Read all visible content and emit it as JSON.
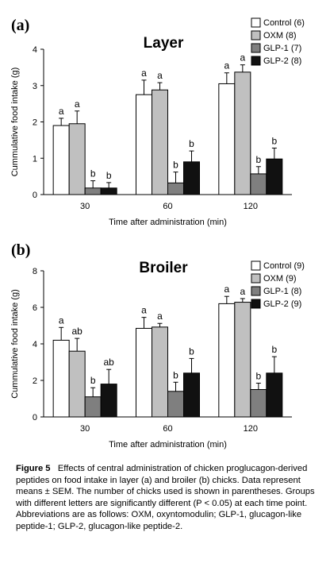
{
  "chart_data": [
    {
      "type": "bar",
      "panel_label": "(a)",
      "title": "Layer",
      "xlabel": "Time after administration (min)",
      "ylabel": "Cummulative food intake (g)",
      "categories": [
        "30",
        "60",
        "120"
      ],
      "ylim": [
        0,
        4
      ],
      "yticks": [
        "0",
        "1",
        "2",
        "3",
        "4"
      ],
      "legend_position": "top-right",
      "series": [
        {
          "name": "Control (6)",
          "color": "#ffffff",
          "values": [
            1.9,
            2.75,
            3.05
          ],
          "errors": [
            0.2,
            0.4,
            0.3
          ],
          "labels": [
            "a",
            "a",
            "a"
          ]
        },
        {
          "name": "OXM (8)",
          "color": "#c0c0c0",
          "values": [
            1.95,
            2.88,
            3.37
          ],
          "errors": [
            0.35,
            0.2,
            0.2
          ],
          "labels": [
            "a",
            "a",
            "a"
          ]
        },
        {
          "name": "GLP-1 (7)",
          "color": "#7f7f7f",
          "values": [
            0.18,
            0.32,
            0.57
          ],
          "errors": [
            0.2,
            0.3,
            0.2
          ],
          "labels": [
            "b",
            "b",
            "b"
          ]
        },
        {
          "name": "GLP-2 (8)",
          "color": "#111111",
          "values": [
            0.18,
            0.9,
            0.98
          ],
          "errors": [
            0.15,
            0.3,
            0.3
          ],
          "labels": [
            "b",
            "b",
            "b"
          ]
        }
      ]
    },
    {
      "type": "bar",
      "panel_label": "(b)",
      "title": "Broiler",
      "xlabel": "Time after administration (min)",
      "ylabel": "Cummulative food intake (g)",
      "categories": [
        "30",
        "60",
        "120"
      ],
      "ylim": [
        0,
        8
      ],
      "yticks": [
        "0",
        "2",
        "4",
        "6",
        "8"
      ],
      "legend_position": "top-right",
      "series": [
        {
          "name": "Control (9)",
          "color": "#ffffff",
          "values": [
            4.2,
            4.85,
            6.2
          ],
          "errors": [
            0.7,
            0.6,
            0.4
          ],
          "labels": [
            "a",
            "a",
            "a"
          ]
        },
        {
          "name": "OXM (9)",
          "color": "#c0c0c0",
          "values": [
            3.6,
            4.92,
            6.28
          ],
          "errors": [
            0.7,
            0.2,
            0.2
          ],
          "labels": [
            "ab",
            "a",
            "a"
          ]
        },
        {
          "name": "GLP-1 (8)",
          "color": "#7f7f7f",
          "values": [
            1.1,
            1.4,
            1.5
          ],
          "errors": [
            0.5,
            0.5,
            0.35
          ],
          "labels": [
            "b",
            "b",
            "b"
          ]
        },
        {
          "name": "GLP-2 (9)",
          "color": "#111111",
          "values": [
            1.8,
            2.4,
            2.4
          ],
          "errors": [
            0.8,
            0.8,
            0.9
          ],
          "labels": [
            "ab",
            "b",
            "b"
          ]
        }
      ]
    }
  ],
  "caption": {
    "label": "Figure 5",
    "text": "Effects of central administration of chicken proglucagon-derived peptides on food intake in layer (a) and broiler (b) chicks. Data represent means ± SEM. The number of chicks used is shown in parentheses. Groups with different letters are significantly different (P < 0.05) at each time point. Abbreviations are as follows: OXM, oxyntomodulin; GLP-1, glucagon-like peptide-1; GLP-2, glucagon-like peptide-2."
  }
}
